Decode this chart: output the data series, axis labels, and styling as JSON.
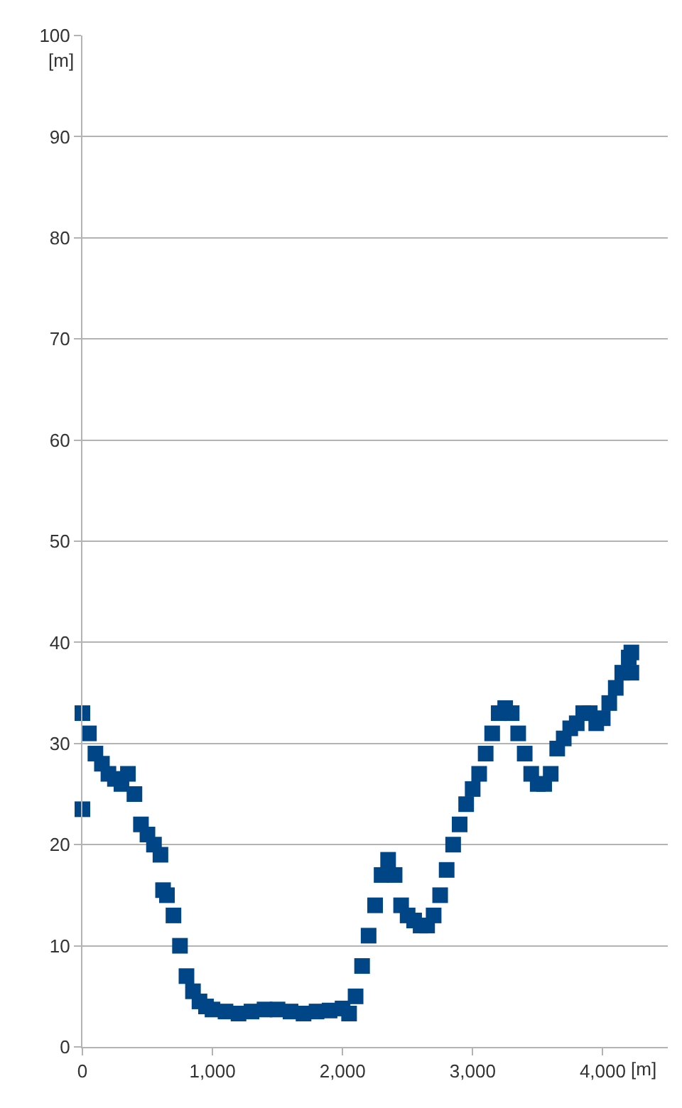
{
  "chart_data": {
    "type": "scatter",
    "xlabel": "[m]",
    "ylabel": "[m]",
    "marker": "square",
    "grid": "y",
    "x": [
      0,
      0,
      50,
      100,
      150,
      200,
      250,
      300,
      350,
      400,
      450,
      500,
      550,
      600,
      620,
      650,
      700,
      750,
      800,
      850,
      900,
      950,
      1000,
      1100,
      1200,
      1300,
      1400,
      1500,
      1600,
      1700,
      1800,
      1900,
      2000,
      2050,
      2100,
      2150,
      2200,
      2250,
      2300,
      2350,
      2400,
      2450,
      2500,
      2550,
      2600,
      2650,
      2700,
      2750,
      2800,
      2850,
      2900,
      2950,
      3000,
      3050,
      3100,
      3150,
      3200,
      3250,
      3300,
      3350,
      3400,
      3450,
      3500,
      3550,
      3600,
      3650,
      3700,
      3750,
      3800,
      3850,
      3900,
      3950,
      4000,
      4050,
      4100,
      4150,
      4200,
      4220,
      4220
    ],
    "series": [
      {
        "color": "#004586",
        "values": [
          23.5,
          33,
          31,
          29,
          28,
          27,
          26.5,
          26,
          27,
          25,
          22,
          21,
          20,
          19,
          15.5,
          15,
          13,
          10,
          7,
          5.5,
          4.5,
          4,
          3.7,
          3.5,
          3.3,
          3.5,
          3.7,
          3.7,
          3.5,
          3.3,
          3.5,
          3.6,
          3.8,
          3.3,
          5,
          8,
          11,
          14,
          17,
          18.5,
          17,
          14,
          13,
          12.5,
          12,
          12,
          13,
          15,
          17.5,
          20,
          22,
          24,
          25.5,
          27,
          29,
          31,
          33,
          33.5,
          33,
          31,
          29,
          27,
          26,
          26,
          27,
          29.5,
          30.5,
          31.5,
          32,
          33,
          33,
          32,
          32.5,
          34,
          35.5,
          37,
          38.5,
          39,
          37
        ]
      }
    ],
    "xlim": [
      0,
      4500
    ],
    "xticks": [
      0,
      {
        "value": 1000,
        "label": "1,000"
      },
      {
        "value": 2000,
        "label": "2,000"
      },
      {
        "value": 3000,
        "label": "3,000"
      },
      {
        "value": 4000,
        "label": "4,000"
      }
    ],
    "ylim": [
      0,
      100
    ],
    "yticks": [
      0,
      10,
      20,
      30,
      40,
      50,
      60,
      70,
      80,
      90,
      100
    ]
  }
}
